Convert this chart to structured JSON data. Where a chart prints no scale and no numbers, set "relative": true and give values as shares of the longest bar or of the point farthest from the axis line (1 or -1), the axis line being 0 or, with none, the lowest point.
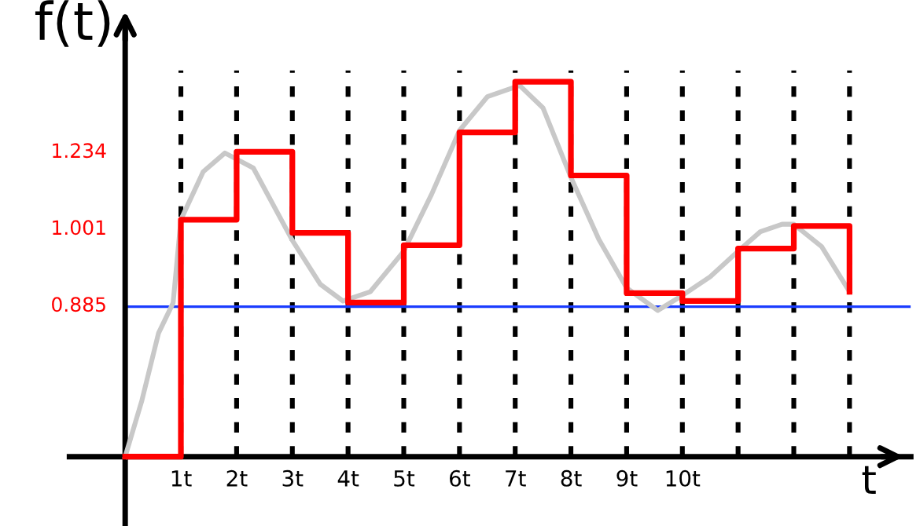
{
  "chart_data": {
    "type": "step",
    "relative": true,
    "xlabel": "t",
    "ylabel": "f(t)",
    "xlim": [
      -1,
      14.1
    ],
    "xticks": [
      {
        "value": 1,
        "label": "1t"
      },
      {
        "value": 2,
        "label": "2t"
      },
      {
        "value": 3,
        "label": "3t"
      },
      {
        "value": 4,
        "label": "4t"
      },
      {
        "value": 5,
        "label": "5t"
      },
      {
        "value": 6,
        "label": "6t"
      },
      {
        "value": 7,
        "label": "7t"
      },
      {
        "value": 8,
        "label": "8t"
      },
      {
        "value": 9,
        "label": "9t"
      },
      {
        "value": 10,
        "label": "10t"
      },
      {
        "value": 11,
        "label": null
      },
      {
        "value": 12,
        "label": null
      },
      {
        "value": 13,
        "label": null
      }
    ],
    "grid": "x",
    "line_style": "solid",
    "marker": "none",
    "series": [
      {
        "type": "line",
        "color": "#c8c8c8",
        "x": [
          0,
          0.3,
          0.6,
          0.86,
          1,
          1.4,
          1.79,
          2.3,
          3,
          3.5,
          3.91,
          4.4,
          5,
          5.5,
          6,
          6.5,
          7.08,
          7.5,
          8,
          8.5,
          9,
          9.56,
          10,
          10.5,
          11,
          11.4,
          11.79,
          12,
          12.5,
          13
        ],
        "values": [
          0,
          0.15,
          0.33,
          0.41,
          0.632,
          0.76,
          0.81,
          0.77,
          0.577,
          0.46,
          0.415,
          0.44,
          0.548,
          0.7,
          0.87,
          0.96,
          0.99,
          0.93,
          0.745,
          0.58,
          0.45,
          0.39,
          0.43,
          0.48,
          0.548,
          0.6,
          0.62,
          0.62,
          0.56,
          0.44
        ]
      },
      {
        "color": "#ff0000",
        "x": [
          0,
          1,
          2,
          3,
          4,
          5,
          6,
          7,
          8,
          9,
          10,
          11,
          12,
          13
        ],
        "values": [
          0,
          0.632,
          0.813,
          0.597,
          0.411,
          0.564,
          0.865,
          1.0,
          0.75,
          0.436,
          0.415,
          0.555,
          0.615,
          0.44
        ]
      }
    ],
    "ref_lines": [
      {
        "axis": "y",
        "value": 0.4,
        "color": "#1a3cff"
      }
    ],
    "annotations": [
      "1.234",
      "1.001",
      "0.885"
    ]
  }
}
